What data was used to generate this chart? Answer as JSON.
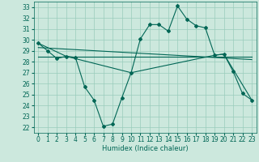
{
  "title": "",
  "xlabel": "Humidex (Indice chaleur)",
  "bg_color": "#cce8dd",
  "line_color": "#006655",
  "grid_color": "#99ccbb",
  "xlim": [
    -0.5,
    23.5
  ],
  "ylim": [
    21.5,
    33.5
  ],
  "yticks": [
    22,
    23,
    24,
    25,
    26,
    27,
    28,
    29,
    30,
    31,
    32,
    33
  ],
  "xticks": [
    0,
    1,
    2,
    3,
    4,
    5,
    6,
    7,
    8,
    9,
    10,
    11,
    12,
    13,
    14,
    15,
    16,
    17,
    18,
    19,
    20,
    21,
    22,
    23
  ],
  "curve1": [
    29.7,
    29.0,
    28.3,
    28.5,
    28.4,
    25.7,
    24.5,
    22.1,
    22.3,
    24.7,
    27.0,
    30.1,
    31.4,
    31.4,
    30.8,
    33.1,
    31.9,
    31.3,
    31.1,
    28.6,
    28.7,
    27.1,
    25.1,
    24.5
  ],
  "curve2_x": [
    0,
    3,
    10,
    19,
    20,
    23
  ],
  "curve2_y": [
    29.7,
    28.5,
    27.0,
    28.6,
    28.7,
    24.5
  ],
  "line1_x": [
    0,
    23
  ],
  "line1_y": [
    28.5,
    28.5
  ],
  "line2_x": [
    0,
    23
  ],
  "line2_y": [
    29.3,
    28.2
  ]
}
